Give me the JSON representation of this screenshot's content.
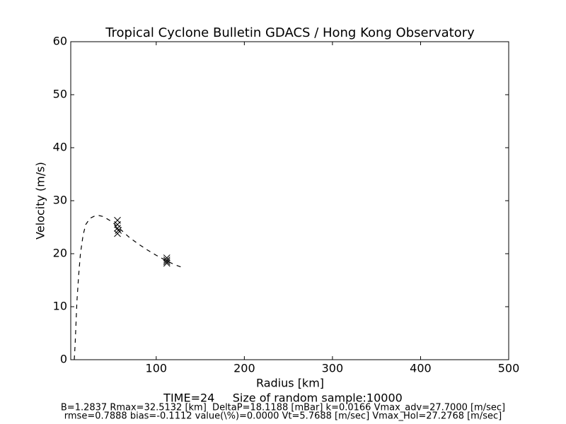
{
  "chart_data": {
    "type": "line",
    "title": "Tropical Cyclone Bulletin GDACS / Hong Kong Observatory",
    "x_label": "Radius [km]",
    "y_label": "Velocity (m/s)",
    "annotations": [
      "TIME=24     Size of random sample:10000",
      "B=1.2837 Rmax=32.5132 [km]  DeltaP=18.1188 [mBar] k=0.0166 Vmax_adv=27.7000 [m/sec]",
      "rmse=0.7888 bias=-0.1112 value(\\%)=0.0000 Vt=5.7688 [m/sec] Vmax_Hol=27.2768 [m/sec]"
    ],
    "xlim": [
      3,
      500
    ],
    "xticks": [
      100,
      200,
      300,
      400,
      500
    ],
    "ylim": [
      0,
      60
    ],
    "yticks": [
      0,
      10,
      20,
      30,
      40,
      50,
      60
    ],
    "series": [
      {
        "color": "#000000",
        "linestyle": "dashed",
        "x": [
          7,
          8,
          9,
          10,
          12,
          14,
          17,
          20,
          25,
          30,
          35,
          40,
          50,
          60,
          70,
          80,
          90,
          100,
          110,
          120,
          128
        ],
        "values": [
          0,
          3,
          7,
          11,
          16,
          20,
          23.5,
          25.5,
          26.7,
          27.1,
          27.2,
          27,
          26,
          24.5,
          23,
          21.8,
          20.7,
          19.7,
          18.8,
          18,
          17.5
        ]
      },
      {
        "color": "#000000",
        "marker": "x",
        "x": [
          56,
          56,
          56,
          56,
          57,
          112,
          112,
          112,
          112
        ],
        "values": [
          26.3,
          25.5,
          24.8,
          23.8,
          24.4,
          19.2,
          18.8,
          18.5,
          18.2
        ]
      }
    ]
  }
}
